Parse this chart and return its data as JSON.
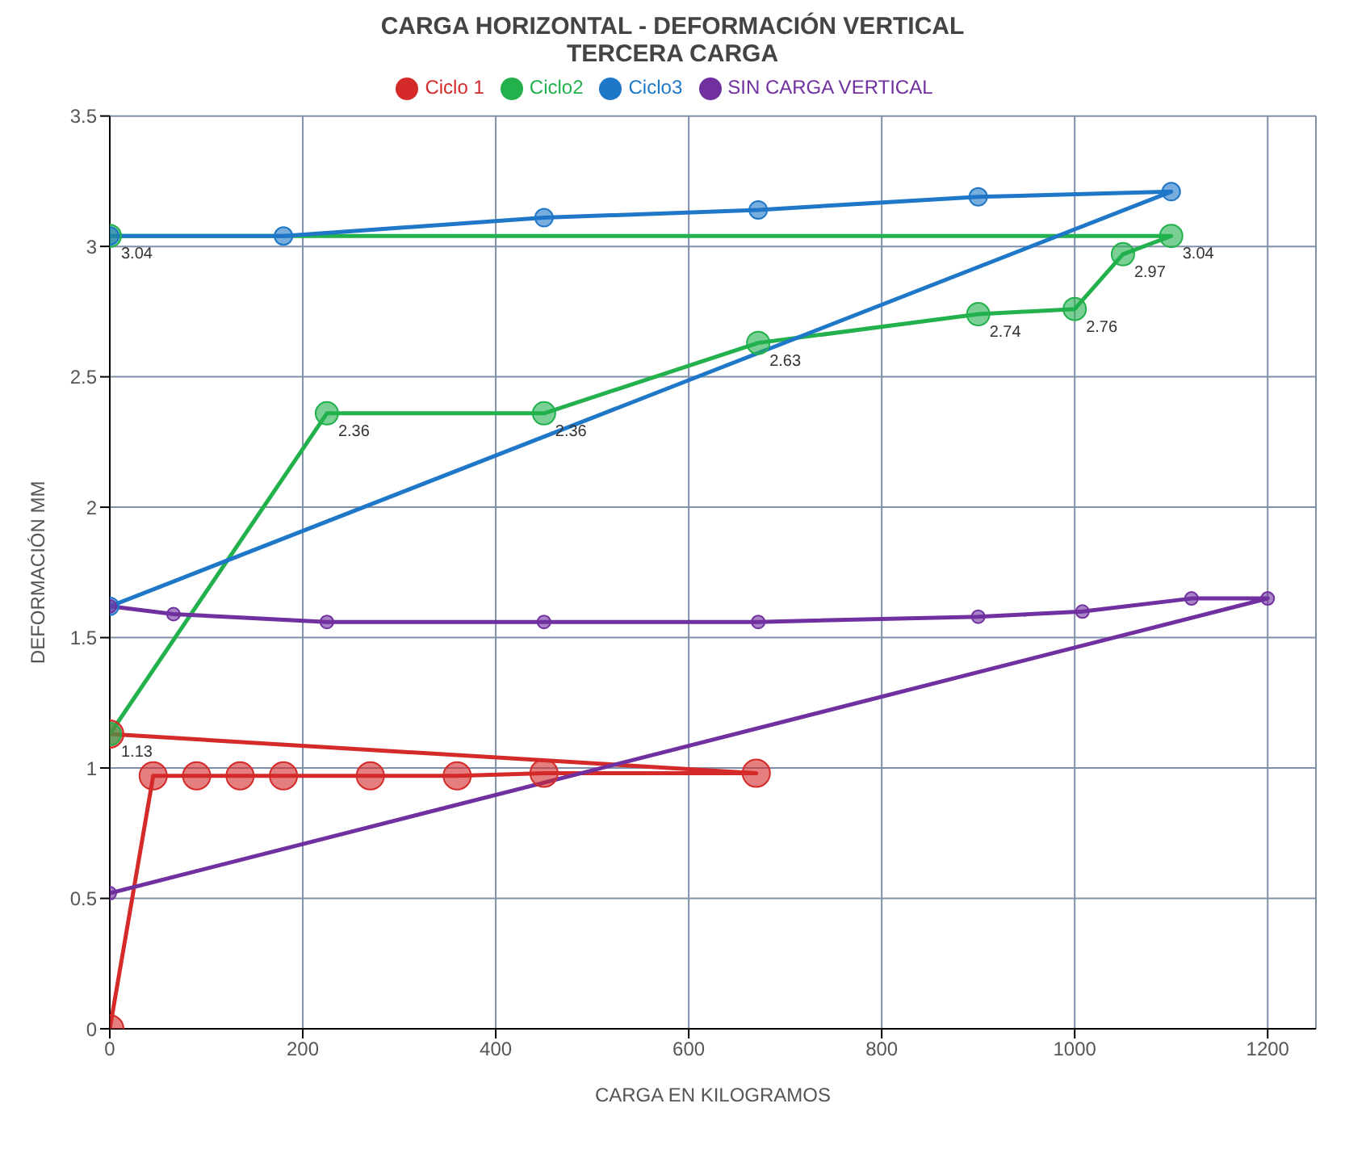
{
  "chart_data": {
    "type": "line",
    "title": "CARGA HORIZONTAL - DEFORMACIÓN VERTICAL",
    "subtitle": "TERCERA CARGA",
    "xlabel": "CARGA EN KILOGRAMOS",
    "ylabel": "DEFORMACIÓN  MM",
    "series": [
      {
        "name": "Ciclo 1",
        "color": "#d42a2a",
        "x": [
          0,
          45,
          90,
          135,
          180,
          270,
          360,
          450,
          670,
          0
        ],
        "values": [
          0,
          0.97,
          0.97,
          0.97,
          0.97,
          0.97,
          0.97,
          0.98,
          0.98,
          1.13
        ]
      },
      {
        "name": "Ciclo2",
        "color": "#22b14c",
        "x": [
          0,
          225,
          450,
          672,
          900,
          1000,
          1050,
          1100,
          0
        ],
        "values": [
          1.13,
          2.36,
          2.36,
          2.63,
          2.74,
          2.76,
          2.97,
          3.04,
          3.04
        ],
        "value_labels": [
          "1.13",
          "2.36",
          "2.36",
          "2.63",
          "2.74",
          "2.76",
          "2.97",
          "3.04",
          "3.04"
        ]
      },
      {
        "name": "Ciclo3",
        "color": "#1f77c8",
        "x": [
          0,
          180,
          450,
          672,
          900,
          1100,
          0
        ],
        "values": [
          3.04,
          3.04,
          3.11,
          3.14,
          3.19,
          3.21,
          1.62
        ]
      },
      {
        "name": "SIN CARGA VERTICAL",
        "color": "#7030a0",
        "x": [
          0,
          66,
          225,
          450,
          672,
          900,
          1008,
          1121,
          1200,
          0
        ],
        "values": [
          1.62,
          1.59,
          1.56,
          1.56,
          1.56,
          1.58,
          1.6,
          1.65,
          1.65,
          0.52
        ]
      }
    ],
    "xlim": [
      0,
      1250
    ],
    "xticks": [
      0,
      200,
      400,
      600,
      800,
      1000,
      1200
    ],
    "ylim": [
      0,
      3.5
    ],
    "yticks": [
      0,
      0.5,
      1,
      1.5,
      2,
      2.5,
      3,
      3.5
    ],
    "grid": true,
    "legend": "top",
    "marker": "circle",
    "line_style": "solid"
  }
}
